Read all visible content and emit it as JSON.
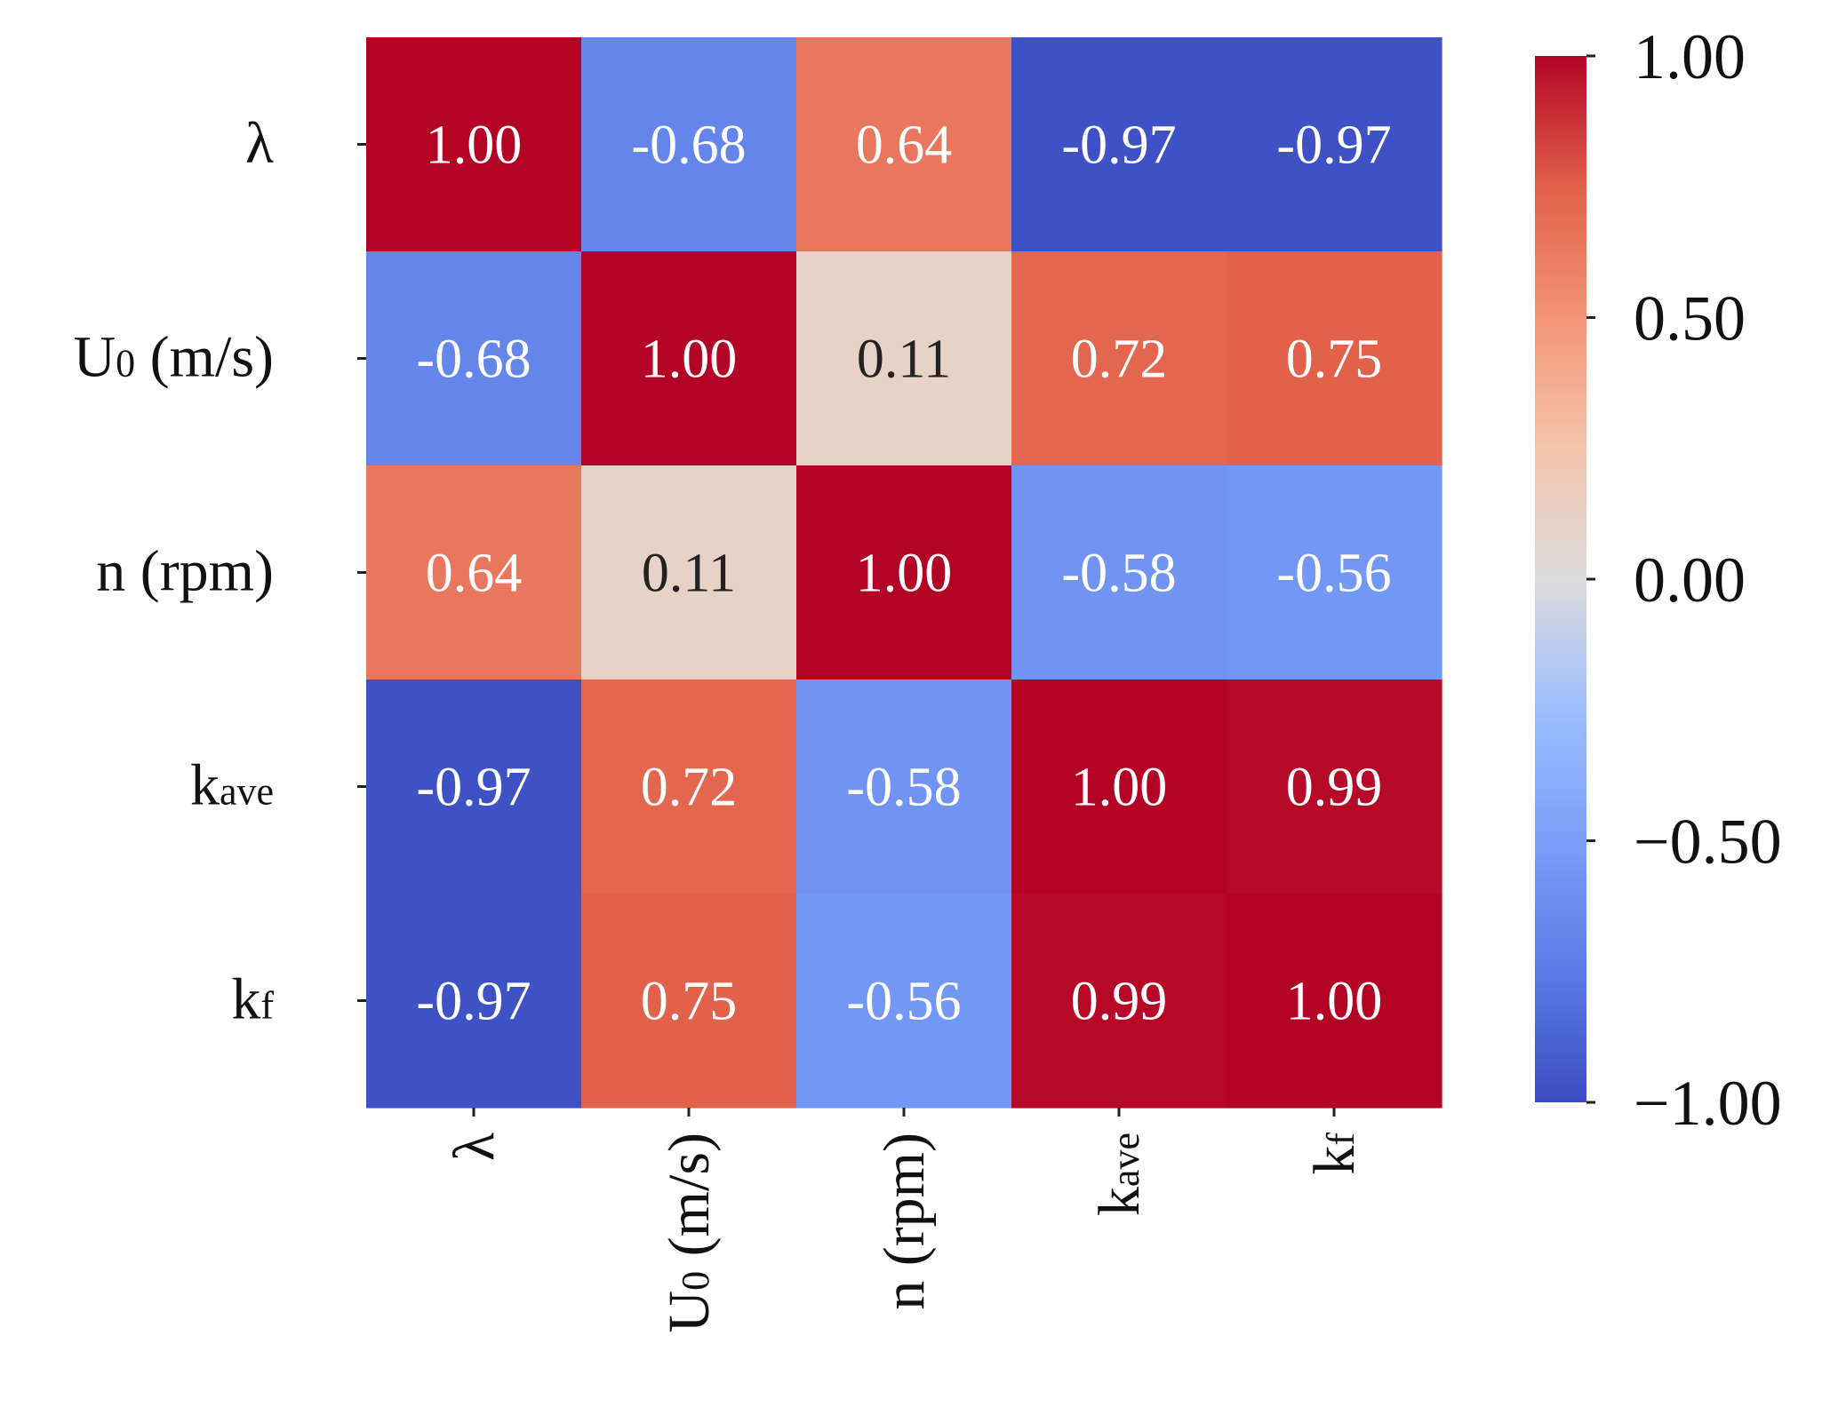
{
  "chart_data": {
    "type": "heatmap",
    "title": "",
    "xlabel": "",
    "ylabel": "",
    "variables": [
      {
        "main": "λ",
        "sub": ""
      },
      {
        "main": "U",
        "sub": "0",
        "suffix": " (m/s)"
      },
      {
        "main": "n (rpm)",
        "sub": ""
      },
      {
        "main": "k",
        "sub": "ave"
      },
      {
        "main": "k",
        "sub": "f"
      }
    ],
    "matrix": [
      [
        1.0,
        -0.68,
        0.64,
        -0.97,
        -0.97
      ],
      [
        -0.68,
        1.0,
        0.11,
        0.72,
        0.75
      ],
      [
        0.64,
        0.11,
        1.0,
        -0.58,
        -0.56
      ],
      [
        -0.97,
        0.72,
        -0.58,
        1.0,
        0.99
      ],
      [
        -0.97,
        0.75,
        -0.56,
        0.99,
        1.0
      ]
    ],
    "value_format_decimals": 2,
    "colormap": "coolwarm",
    "vmin": -1.0,
    "vmax": 1.0,
    "colorbar_ticks": [
      1.0,
      0.5,
      0.0,
      -0.5,
      -1.0
    ],
    "colorbar_tick_labels": [
      "1.00",
      "0.50",
      "0.00",
      "−0.50",
      "−1.00"
    ],
    "colorbar_position": "right",
    "grid": false
  }
}
